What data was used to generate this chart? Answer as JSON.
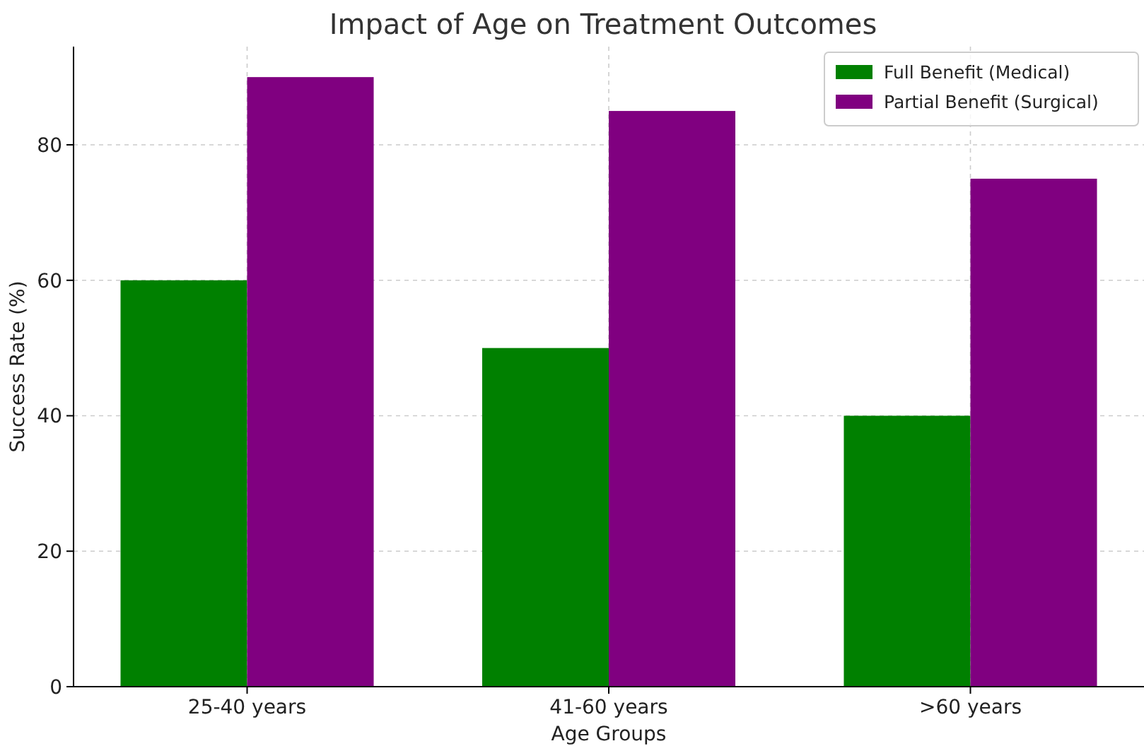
{
  "chart_data": {
    "type": "bar",
    "title": "Impact of Age on Treatment Outcomes",
    "xlabel": "Age Groups",
    "ylabel": "Success Rate (%)",
    "categories": [
      "25-40 years",
      "41-60 years",
      ">60 years"
    ],
    "series": [
      {
        "name": "Full Benefit (Medical)",
        "color": "#008000",
        "values": [
          60,
          50,
          40
        ]
      },
      {
        "name": "Partial Benefit (Surgical)",
        "color": "#800080",
        "values": [
          90,
          85,
          75
        ]
      }
    ],
    "ylim": [
      0,
      94.5
    ],
    "yticks": [
      0,
      20,
      40,
      60,
      80
    ],
    "grid": true,
    "legend": "top right"
  }
}
